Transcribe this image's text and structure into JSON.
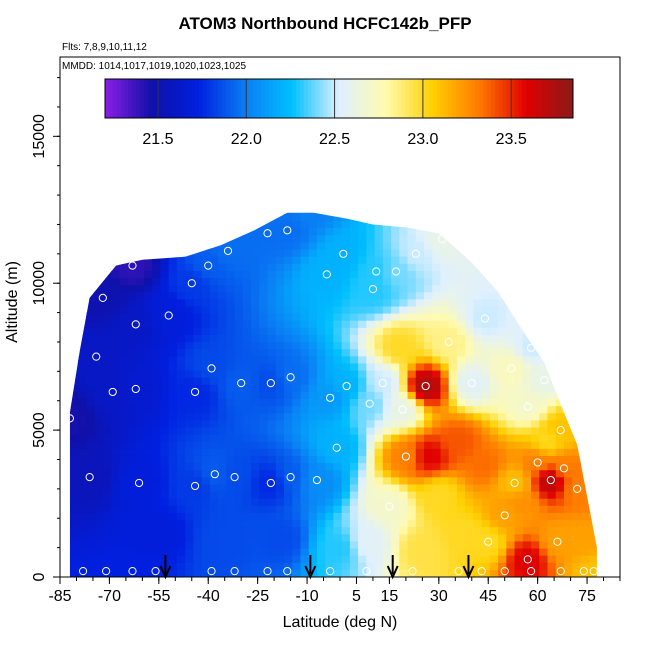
{
  "chart_data": {
    "type": "heatmap",
    "title": "ATOM3 Northbound HCFC142b_PFP",
    "subtitle_flights": "Flts: 7,8,9,10,11,12",
    "subtitle_dates": "MMDD: 1014,1017,1019,1020,1023,1025",
    "xlabel": "Latitude (deg N)",
    "ylabel": "Altitude (m)",
    "xlim": [
      -85,
      85
    ],
    "ylim": [
      0,
      17700
    ],
    "x_ticks": [
      -85,
      -70,
      -55,
      -40,
      -25,
      -10,
      5,
      15,
      30,
      45,
      60,
      75
    ],
    "y_ticks": [
      0,
      5000,
      10000,
      15000
    ],
    "colorbar": {
      "min": 21.2,
      "max": 23.85,
      "ticks": [
        21.5,
        22.0,
        22.5,
        23.0,
        23.5
      ],
      "colors": [
        "#8a1ee6",
        "#1010a8",
        "#0020e0",
        "#0a7ef5",
        "#00c0ff",
        "#dff0ff",
        "#fffbb0",
        "#ffd000",
        "#ff7a00",
        "#e00000",
        "#8a1a1a"
      ]
    },
    "field_lat_range": [
      -82,
      78
    ],
    "samples": [
      {
        "lat": -82,
        "alt": 5400,
        "v": 21.45
      },
      {
        "lat": -76,
        "alt": 3400,
        "v": 21.55
      },
      {
        "lat": -74,
        "alt": 7500,
        "v": 21.6
      },
      {
        "lat": -72,
        "alt": 9500,
        "v": 21.5
      },
      {
        "lat": -69,
        "alt": 6300,
        "v": 21.6
      },
      {
        "lat": -63,
        "alt": 10600,
        "v": 21.4
      },
      {
        "lat": -62,
        "alt": 8600,
        "v": 21.6
      },
      {
        "lat": -61,
        "alt": 3200,
        "v": 21.7
      },
      {
        "lat": -62,
        "alt": 6400,
        "v": 21.65
      },
      {
        "lat": -52,
        "alt": 8900,
        "v": 21.7
      },
      {
        "lat": -45,
        "alt": 10000,
        "v": 21.8
      },
      {
        "lat": -44,
        "alt": 6300,
        "v": 21.75
      },
      {
        "lat": -44,
        "alt": 3100,
        "v": 21.8
      },
      {
        "lat": -40,
        "alt": 10600,
        "v": 21.9
      },
      {
        "lat": -39,
        "alt": 7100,
        "v": 21.85
      },
      {
        "lat": -38,
        "alt": 3500,
        "v": 21.9
      },
      {
        "lat": -34,
        "alt": 11100,
        "v": 21.95
      },
      {
        "lat": -32,
        "alt": 3400,
        "v": 21.85
      },
      {
        "lat": -30,
        "alt": 6600,
        "v": 21.9
      },
      {
        "lat": -22,
        "alt": 11700,
        "v": 21.95
      },
      {
        "lat": -21,
        "alt": 6600,
        "v": 21.85
      },
      {
        "lat": -21,
        "alt": 3200,
        "v": 21.75
      },
      {
        "lat": -16,
        "alt": 11800,
        "v": 21.95
      },
      {
        "lat": -15,
        "alt": 6800,
        "v": 21.95
      },
      {
        "lat": -15,
        "alt": 3400,
        "v": 21.9
      },
      {
        "lat": -9,
        "alt": 12500,
        "v": 22.0
      },
      {
        "lat": -7,
        "alt": 3300,
        "v": 22.05
      },
      {
        "lat": -4,
        "alt": 10300,
        "v": 22.2
      },
      {
        "lat": -3,
        "alt": 6100,
        "v": 22.1
      },
      {
        "lat": -1,
        "alt": 4400,
        "v": 22.2
      },
      {
        "lat": 1,
        "alt": 11000,
        "v": 22.2
      },
      {
        "lat": 2,
        "alt": 6500,
        "v": 22.2
      },
      {
        "lat": 9,
        "alt": 5900,
        "v": 22.4
      },
      {
        "lat": 10,
        "alt": 9800,
        "v": 22.3
      },
      {
        "lat": 11,
        "alt": 10400,
        "v": 22.3
      },
      {
        "lat": 13,
        "alt": 6600,
        "v": 22.5
      },
      {
        "lat": 15,
        "alt": 2400,
        "v": 22.7
      },
      {
        "lat": 17,
        "alt": 10400,
        "v": 22.4
      },
      {
        "lat": 18,
        "alt": 7800,
        "v": 23.0
      },
      {
        "lat": 19,
        "alt": 5700,
        "v": 22.6
      },
      {
        "lat": 20,
        "alt": 4100,
        "v": 23.3
      },
      {
        "lat": 23,
        "alt": 11000,
        "v": 22.5
      },
      {
        "lat": 26,
        "alt": 6500,
        "v": 23.75
      },
      {
        "lat": 27,
        "alt": 4100,
        "v": 23.6
      },
      {
        "lat": 30,
        "alt": 2800,
        "v": 23.0
      },
      {
        "lat": 31,
        "alt": 11500,
        "v": 22.6
      },
      {
        "lat": 33,
        "alt": 8000,
        "v": 22.85
      },
      {
        "lat": 36,
        "alt": 4600,
        "v": 23.4
      },
      {
        "lat": 38,
        "alt": 1500,
        "v": 23.0
      },
      {
        "lat": 40,
        "alt": 6600,
        "v": 22.55
      },
      {
        "lat": 44,
        "alt": 8800,
        "v": 22.5
      },
      {
        "lat": 44,
        "alt": 3800,
        "v": 23.35
      },
      {
        "lat": 45,
        "alt": 1200,
        "v": 23.0
      },
      {
        "lat": 50,
        "alt": 2100,
        "v": 23.2
      },
      {
        "lat": 52,
        "alt": 7100,
        "v": 22.75
      },
      {
        "lat": 53,
        "alt": 3200,
        "v": 23.1
      },
      {
        "lat": 55,
        "alt": 2500,
        "v": 23.25
      },
      {
        "lat": 57,
        "alt": 5800,
        "v": 22.7
      },
      {
        "lat": 57,
        "alt": 600,
        "v": 23.6
      },
      {
        "lat": 58,
        "alt": 7800,
        "v": 22.5
      },
      {
        "lat": 60,
        "alt": 3900,
        "v": 23.3
      },
      {
        "lat": 62,
        "alt": 6700,
        "v": 22.6
      },
      {
        "lat": 63,
        "alt": 4600,
        "v": 23.0
      },
      {
        "lat": 64,
        "alt": 3300,
        "v": 23.75
      },
      {
        "lat": 66,
        "alt": 1200,
        "v": 23.2
      },
      {
        "lat": 67,
        "alt": 5000,
        "v": 23.1
      },
      {
        "lat": 68,
        "alt": 3700,
        "v": 23.3
      },
      {
        "lat": 72,
        "alt": 3000,
        "v": 23.3
      },
      {
        "lat": 74,
        "alt": 1200,
        "v": 23.2
      },
      {
        "lat": 77,
        "alt": 200,
        "v": 23.1
      },
      {
        "lat": -55,
        "alt": 1500,
        "v": 21.7
      },
      {
        "lat": -35,
        "alt": 1200,
        "v": 21.85
      },
      {
        "lat": -18,
        "alt": 1300,
        "v": 21.85
      },
      {
        "lat": 0,
        "alt": 1000,
        "v": 22.3
      },
      {
        "lat": 8,
        "alt": 1200,
        "v": 22.55
      },
      {
        "lat": 25,
        "alt": 900,
        "v": 22.95
      }
    ],
    "sample_points": [
      {
        "lat": -82,
        "alt": 5400
      },
      {
        "lat": -76,
        "alt": 3400
      },
      {
        "lat": -74,
        "alt": 7500
      },
      {
        "lat": -72,
        "alt": 9500
      },
      {
        "lat": -69,
        "alt": 6300
      },
      {
        "lat": -63,
        "alt": 10600
      },
      {
        "lat": -62,
        "alt": 8600
      },
      {
        "lat": -61,
        "alt": 3200
      },
      {
        "lat": -62,
        "alt": 6400
      },
      {
        "lat": -52,
        "alt": 8900
      },
      {
        "lat": -45,
        "alt": 10000
      },
      {
        "lat": -44,
        "alt": 6300
      },
      {
        "lat": -44,
        "alt": 3100
      },
      {
        "lat": -40,
        "alt": 10600
      },
      {
        "lat": -39,
        "alt": 7100
      },
      {
        "lat": -38,
        "alt": 3500
      },
      {
        "lat": -34,
        "alt": 11100
      },
      {
        "lat": -32,
        "alt": 3400
      },
      {
        "lat": -30,
        "alt": 6600
      },
      {
        "lat": -22,
        "alt": 11700
      },
      {
        "lat": -21,
        "alt": 6600
      },
      {
        "lat": -21,
        "alt": 3200
      },
      {
        "lat": -16,
        "alt": 11800
      },
      {
        "lat": -15,
        "alt": 6800
      },
      {
        "lat": -15,
        "alt": 3400
      },
      {
        "lat": -7,
        "alt": 3300
      },
      {
        "lat": -4,
        "alt": 10300
      },
      {
        "lat": -3,
        "alt": 6100
      },
      {
        "lat": -1,
        "alt": 4400
      },
      {
        "lat": 1,
        "alt": 11000
      },
      {
        "lat": 2,
        "alt": 6500
      },
      {
        "lat": 9,
        "alt": 5900
      },
      {
        "lat": 10,
        "alt": 9800
      },
      {
        "lat": 11,
        "alt": 10400
      },
      {
        "lat": 13,
        "alt": 6600
      },
      {
        "lat": 15,
        "alt": 2400
      },
      {
        "lat": 17,
        "alt": 10400
      },
      {
        "lat": 19,
        "alt": 5700
      },
      {
        "lat": 20,
        "alt": 4100
      },
      {
        "lat": 23,
        "alt": 11000
      },
      {
        "lat": 26,
        "alt": 6500
      },
      {
        "lat": 31,
        "alt": 11500
      },
      {
        "lat": 33,
        "alt": 8000
      },
      {
        "lat": 40,
        "alt": 6600
      },
      {
        "lat": 44,
        "alt": 8800
      },
      {
        "lat": 45,
        "alt": 1200
      },
      {
        "lat": 50,
        "alt": 2100
      },
      {
        "lat": 52,
        "alt": 7100
      },
      {
        "lat": 53,
        "alt": 3200
      },
      {
        "lat": 57,
        "alt": 5800
      },
      {
        "lat": 57,
        "alt": 600
      },
      {
        "lat": 58,
        "alt": 7800
      },
      {
        "lat": 60,
        "alt": 3900
      },
      {
        "lat": 62,
        "alt": 6700
      },
      {
        "lat": 64,
        "alt": 3300
      },
      {
        "lat": 66,
        "alt": 1200
      },
      {
        "lat": 67,
        "alt": 5000
      },
      {
        "lat": 68,
        "alt": 3700
      },
      {
        "lat": 72,
        "alt": 3000
      },
      {
        "lat": -78,
        "alt": 200
      },
      {
        "lat": -71,
        "alt": 200
      },
      {
        "lat": -63,
        "alt": 200
      },
      {
        "lat": -56,
        "alt": 200
      },
      {
        "lat": -39,
        "alt": 200
      },
      {
        "lat": -32,
        "alt": 200
      },
      {
        "lat": -22,
        "alt": 200
      },
      {
        "lat": -16,
        "alt": 200
      },
      {
        "lat": -3,
        "alt": 200
      },
      {
        "lat": 8,
        "alt": 200
      },
      {
        "lat": 22,
        "alt": 200
      },
      {
        "lat": 36,
        "alt": 200
      },
      {
        "lat": 43,
        "alt": 200
      },
      {
        "lat": 50,
        "alt": 200
      },
      {
        "lat": 58,
        "alt": 200
      },
      {
        "lat": 67,
        "alt": 200
      },
      {
        "lat": 74,
        "alt": 200
      },
      {
        "lat": 77,
        "alt": 200
      }
    ],
    "arrows_lat": [
      -53,
      -9,
      16,
      39
    ]
  }
}
